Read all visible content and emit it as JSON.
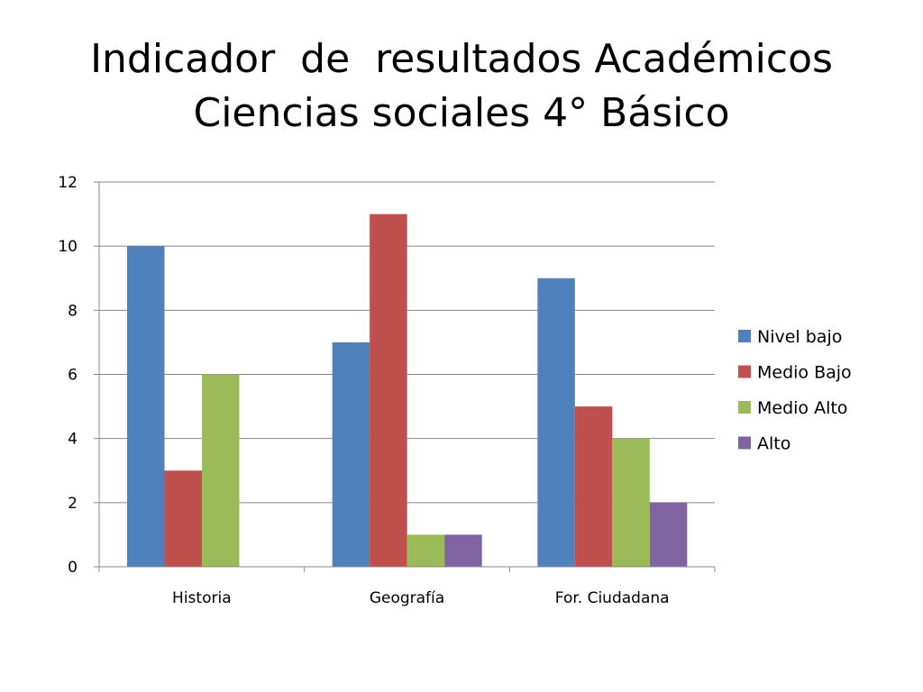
{
  "slide": {
    "title_line1": "Indicador  de  resultados Académicos",
    "title_line2": "Ciencias sociales 4° Básico"
  },
  "chart_data": {
    "type": "bar",
    "categories": [
      "Historia",
      "Geografía",
      "For. Ciudadana"
    ],
    "series": [
      {
        "name": "Nivel bajo",
        "values": [
          10,
          7,
          9
        ],
        "color": "#4F81BD"
      },
      {
        "name": "Medio Bajo",
        "values": [
          3,
          11,
          5
        ],
        "color": "#C0504D"
      },
      {
        "name": "Medio Alto",
        "values": [
          6,
          1,
          4
        ],
        "color": "#9BBB59"
      },
      {
        "name": "Alto",
        "values": [
          0,
          1,
          2
        ],
        "color": "#8064A2"
      }
    ],
    "yticks": [
      "0",
      "2",
      "4",
      "6",
      "8",
      "10",
      "12"
    ],
    "ylim": [
      0,
      12
    ],
    "grid": true,
    "legend_position": "right",
    "xlabel": "",
    "ylabel": ""
  }
}
